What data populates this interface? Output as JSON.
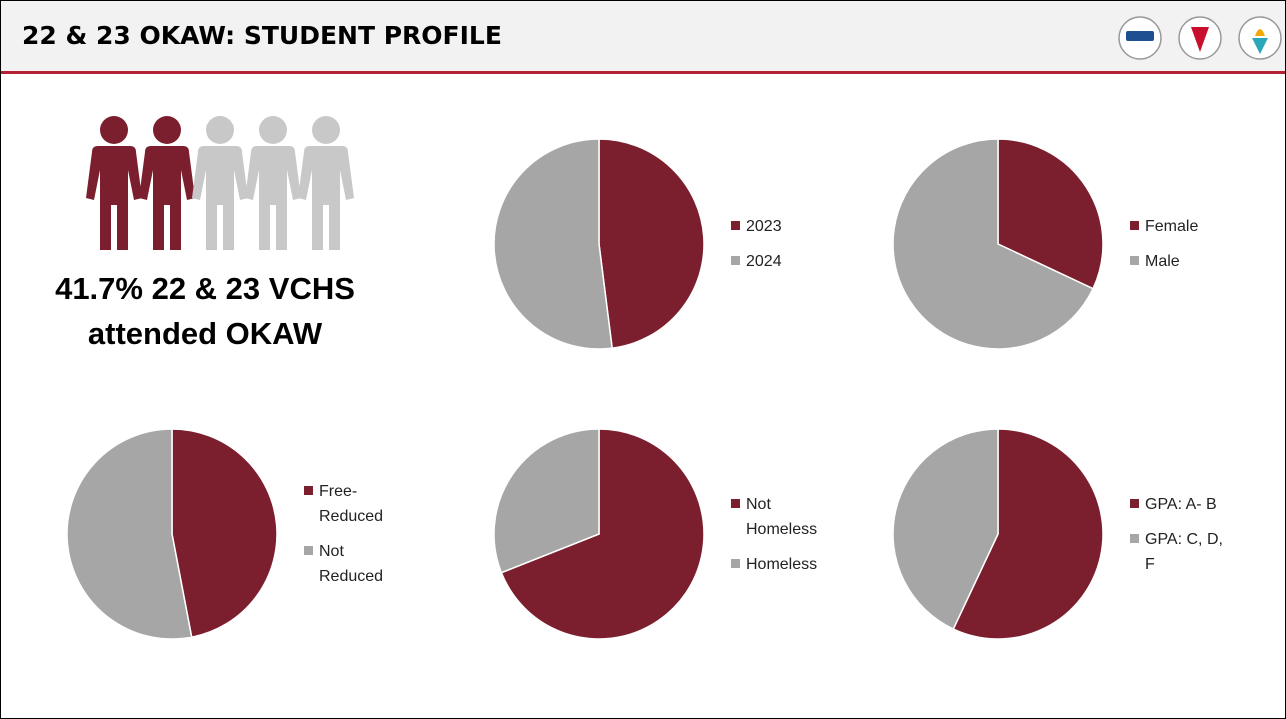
{
  "header": {
    "title": "22 & 23 OKAW: STUDENT PROFILE"
  },
  "callout": "41.7% 22 & 23 VCHS attended OKAW",
  "chart_data": [
    {
      "type": "pie",
      "categories": [
        "2023",
        "2024"
      ],
      "values": [
        48,
        52
      ],
      "colors": [
        "#7b1f2e",
        "#a6a6a6"
      ]
    },
    {
      "type": "pie",
      "categories": [
        "Female",
        "Male"
      ],
      "values": [
        32,
        68
      ],
      "colors": [
        "#7b1f2e",
        "#a6a6a6"
      ]
    },
    {
      "type": "pie",
      "categories": [
        "Free-Reduced",
        "Not Reduced"
      ],
      "values": [
        47,
        53
      ],
      "colors": [
        "#7b1f2e",
        "#a6a6a6"
      ]
    },
    {
      "type": "pie",
      "categories": [
        "Not Homeless",
        "Homeless"
      ],
      "values": [
        69,
        31
      ],
      "colors": [
        "#7b1f2e",
        "#a6a6a6"
      ]
    },
    {
      "type": "pie",
      "categories": [
        "GPA: A- B",
        "GPA: C, D, F"
      ],
      "values": [
        57,
        43
      ],
      "colors": [
        "#7b1f2e",
        "#a6a6a6"
      ]
    }
  ]
}
